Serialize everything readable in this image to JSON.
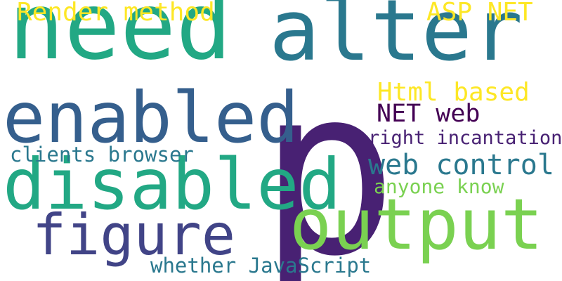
{
  "words": {
    "p": {
      "text": "p",
      "color": "#482173"
    },
    "need": {
      "text": "need",
      "color": "#22a884"
    },
    "alter": {
      "text": "alter",
      "color": "#2a788e"
    },
    "output": {
      "text": "output",
      "color": "#7ad151"
    },
    "enabled": {
      "text": "enabled",
      "color": "#355f8d"
    },
    "disabled": {
      "text": "disabled",
      "color": "#22a884"
    },
    "figure": {
      "text": "figure",
      "color": "#414487"
    },
    "render": {
      "text": "Render method",
      "color": "#fde725"
    },
    "aspnet": {
      "text": "ASP NET",
      "color": "#fde725"
    },
    "html": {
      "text": "Html based",
      "color": "#fde725"
    },
    "netweb": {
      "text": "NET web",
      "color": "#440154"
    },
    "right": {
      "text": "right incantation",
      "color": "#482173"
    },
    "clients": {
      "text": "clients browser",
      "color": "#2a788e"
    },
    "webctl": {
      "text": "web control",
      "color": "#2a788e"
    },
    "anyone": {
      "text": "anyone know",
      "color": "#7ad151"
    },
    "whether": {
      "text": "whether JavaScript",
      "color": "#2a788e"
    }
  }
}
